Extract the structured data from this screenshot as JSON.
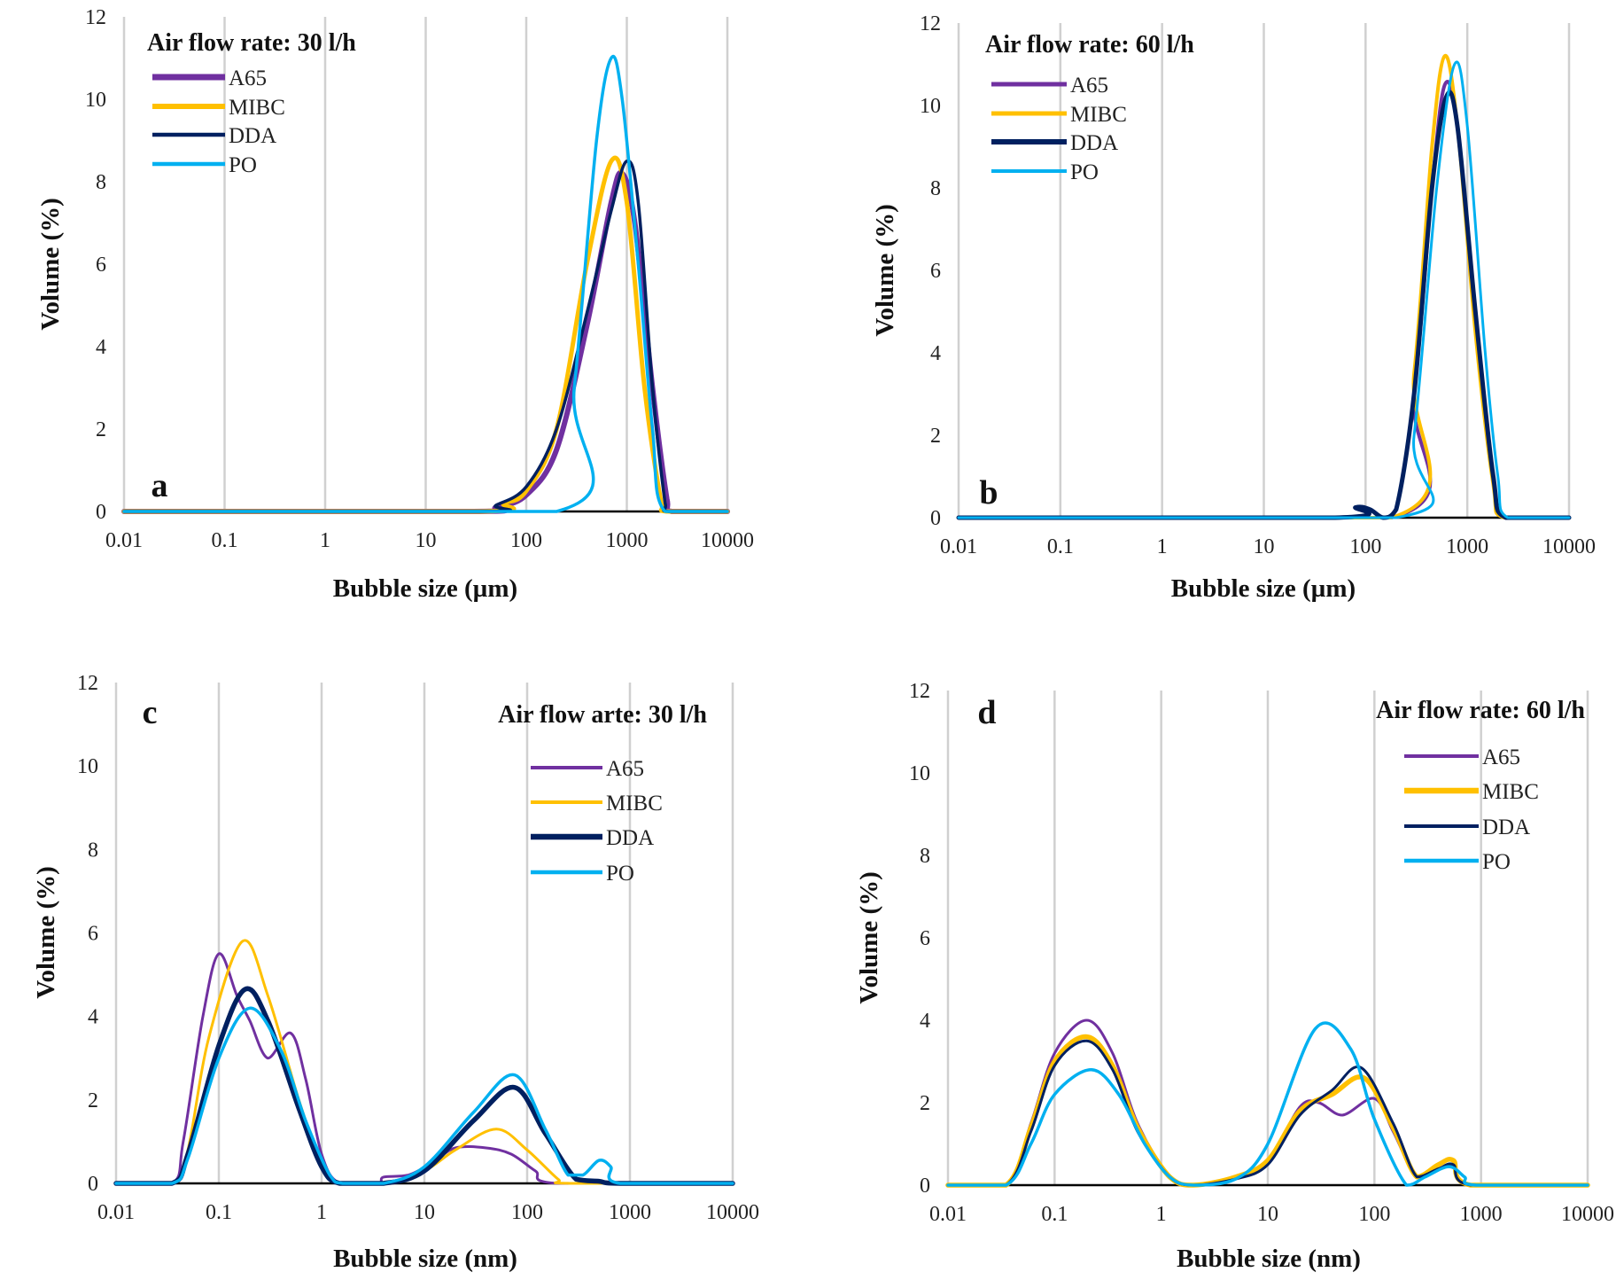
{
  "colors": {
    "A65": "#7030A0",
    "MIBC": "#FFC000",
    "DDA": "#002060",
    "PO": "#00B0F0"
  },
  "chart_data": [
    {
      "type": "line",
      "panel": "a",
      "title": "Air flow rate: 30 l/h",
      "xlabel": "Bubble size (µm)",
      "ylabel": "Volume (%)",
      "xscale": "log",
      "xlim": [
        0.01,
        10000
      ],
      "ylim": [
        0,
        12
      ],
      "xticks": [
        "0.01",
        "0.1",
        "1",
        "10",
        "100",
        "1000",
        "10000"
      ],
      "yticks": [
        "0",
        "2",
        "4",
        "6",
        "8",
        "10",
        "12"
      ],
      "grid": "vertical",
      "legend": "top-left",
      "series": [
        {
          "name": "A65",
          "x": [
            0.01,
            30,
            50,
            100,
            200,
            400,
            700,
            900,
            1200,
            1800,
            2500,
            2800,
            10000
          ],
          "y": [
            0,
            0,
            0.1,
            0.4,
            1.5,
            4.5,
            7.5,
            8.2,
            7,
            3,
            0.3,
            0,
            0
          ]
        },
        {
          "name": "MIBC",
          "x": [
            0.01,
            35,
            60,
            100,
            200,
            400,
            700,
            1000,
            1500,
            2200,
            2500,
            10000
          ],
          "y": [
            0,
            0,
            0.2,
            0.5,
            2,
            6,
            8.5,
            7.5,
            3,
            0.2,
            0,
            0
          ]
        },
        {
          "name": "DDA",
          "x": [
            0.01,
            35,
            50,
            100,
            200,
            400,
            700,
            1000,
            1300,
            1800,
            2400,
            2600,
            10000
          ],
          "y": [
            0,
            0,
            0.15,
            0.6,
            2,
            4.8,
            7.3,
            8.5,
            7.5,
            3,
            0.2,
            0,
            0
          ]
        },
        {
          "name": "PO",
          "x": [
            0.01,
            200,
            300,
            500,
            700,
            900,
            1300,
            1800,
            2400,
            10000
          ],
          "y": [
            0,
            0,
            3,
            9,
            11,
            10,
            6,
            2,
            0,
            0
          ]
        }
      ]
    },
    {
      "type": "line",
      "panel": "b",
      "title": "Air flow rate: 60 l/h",
      "xlabel": "Bubble size (µm)",
      "ylabel": "Volume (%)",
      "xscale": "log",
      "xlim": [
        0.01,
        10000
      ],
      "ylim": [
        0,
        12
      ],
      "xticks": [
        "0.01",
        "0.1",
        "1",
        "10",
        "100",
        "1000",
        "10000"
      ],
      "yticks": [
        "0",
        "2",
        "4",
        "6",
        "8",
        "10",
        "12"
      ],
      "grid": "vertical",
      "legend": "top-left",
      "series": [
        {
          "name": "A65",
          "x": [
            0.01,
            180,
            300,
            450,
            600,
            800,
            1200,
            1800,
            2400,
            10000
          ],
          "y": [
            0,
            0,
            3,
            8,
            10.5,
            9.5,
            5,
            1,
            0,
            0
          ]
        },
        {
          "name": "MIBC",
          "x": [
            0.01,
            180,
            300,
            450,
            600,
            800,
            1200,
            1800,
            2300,
            10000
          ],
          "y": [
            0,
            0,
            3.5,
            9,
            11.2,
            9.5,
            4.5,
            0.8,
            0,
            0
          ]
        },
        {
          "name": "DDA",
          "x": [
            0.01,
            50,
            80,
            110,
            150,
            200,
            300,
            450,
            620,
            800,
            1200,
            1800,
            2400,
            10000
          ],
          "y": [
            0,
            0,
            0.25,
            0.2,
            0,
            0.2,
            3,
            8,
            10.2,
            9.5,
            5,
            1,
            0,
            0
          ]
        },
        {
          "name": "PO",
          "x": [
            0.01,
            200,
            300,
            500,
            750,
            1000,
            1500,
            2000,
            2500,
            10000
          ],
          "y": [
            0,
            0,
            2,
            8,
            11,
            9.5,
            4,
            1,
            0,
            0
          ]
        }
      ]
    },
    {
      "type": "line",
      "panel": "c",
      "title": "Air flow arte: 30 l/h",
      "xlabel": "Bubble size (nm)",
      "ylabel": "Volume (%)",
      "xscale": "log",
      "xlim": [
        0.01,
        10000
      ],
      "ylim": [
        0,
        12
      ],
      "xticks": [
        "0.01",
        "0.1",
        "1",
        "10",
        "100",
        "1000",
        "10000"
      ],
      "yticks": [
        "0",
        "2",
        "4",
        "6",
        "8",
        "10",
        "12"
      ],
      "grid": "vertical",
      "legend": "top-right",
      "series": [
        {
          "name": "A65",
          "x": [
            0.01,
            0.035,
            0.045,
            0.07,
            0.1,
            0.15,
            0.2,
            0.3,
            0.5,
            0.7,
            1.0,
            1.5,
            3.5,
            4,
            7,
            12,
            20,
            40,
            70,
            120,
            200,
            10000
          ],
          "y": [
            0,
            0,
            1,
            4,
            5.5,
            4.5,
            3.9,
            3.0,
            3.6,
            2.5,
            0.7,
            0,
            0,
            0.15,
            0.2,
            0.5,
            0.85,
            0.85,
            0.7,
            0.3,
            0,
            0
          ]
        },
        {
          "name": "MIBC",
          "x": [
            0.01,
            0.035,
            0.05,
            0.08,
            0.17,
            0.3,
            0.6,
            1,
            1.5,
            4,
            10,
            20,
            50,
            100,
            200,
            260,
            10000
          ],
          "y": [
            0,
            0,
            0.8,
            3.5,
            5.8,
            4.5,
            2,
            0.5,
            0,
            0,
            0.3,
            0.8,
            1.3,
            0.8,
            0.1,
            0,
            0
          ]
        },
        {
          "name": "DDA",
          "x": [
            0.01,
            0.035,
            0.05,
            0.1,
            0.18,
            0.3,
            0.6,
            1,
            1.5,
            4,
            10,
            30,
            75,
            150,
            300,
            500,
            800,
            10000
          ],
          "y": [
            0,
            0,
            0.7,
            3.3,
            4.65,
            3.9,
            1.8,
            0.4,
            0,
            0,
            0.3,
            1.5,
            2.3,
            1.2,
            0.1,
            0.05,
            0,
            0
          ]
        },
        {
          "name": "PO",
          "x": [
            0.01,
            0.035,
            0.05,
            0.1,
            0.2,
            0.4,
            0.7,
            1.2,
            1.6,
            4,
            10,
            30,
            75,
            150,
            250,
            350,
            500,
            650,
            800,
            10000
          ],
          "y": [
            0,
            0,
            0.6,
            3,
            4.2,
            3.2,
            1.5,
            0.2,
            0,
            0,
            0.4,
            1.7,
            2.6,
            1.3,
            0.2,
            0.2,
            0.55,
            0.4,
            0,
            0
          ]
        }
      ]
    },
    {
      "type": "line",
      "panel": "d",
      "title": "Air flow rate: 60 l/h",
      "xlabel": "Bubble size (nm)",
      "ylabel": "Volume (%)",
      "xscale": "log",
      "xlim": [
        0.01,
        10000
      ],
      "ylim": [
        0,
        12
      ],
      "xticks": [
        "0.01",
        "0.1",
        "1",
        "10",
        "100",
        "1000",
        "10000"
      ],
      "yticks": [
        "0",
        "2",
        "4",
        "6",
        "8",
        "10",
        "12"
      ],
      "grid": "vertical",
      "legend": "top-right",
      "series": [
        {
          "name": "A65",
          "x": [
            0.01,
            0.035,
            0.06,
            0.1,
            0.2,
            0.35,
            0.6,
            1.2,
            2,
            5,
            10,
            20,
            30,
            50,
            100,
            150,
            250,
            400,
            550,
            800,
            10000
          ],
          "y": [
            0,
            0,
            1.5,
            3.2,
            4,
            3.2,
            1.5,
            0.2,
            0,
            0.15,
            0.6,
            1.9,
            2,
            1.7,
            2.1,
            1.3,
            0.2,
            0.4,
            0.45,
            0,
            0
          ]
        },
        {
          "name": "MIBC",
          "x": [
            0.01,
            0.035,
            0.06,
            0.1,
            0.2,
            0.35,
            0.6,
            1.2,
            2,
            5,
            10,
            20,
            40,
            80,
            150,
            250,
            400,
            550,
            800,
            10000
          ],
          "y": [
            0,
            0,
            1.4,
            3,
            3.6,
            2.9,
            1.4,
            0.2,
            0,
            0.2,
            0.6,
            1.8,
            2.2,
            2.6,
            1.4,
            0.2,
            0.5,
            0.6,
            0,
            0
          ]
        },
        {
          "name": "DDA",
          "x": [
            0.01,
            0.035,
            0.06,
            0.1,
            0.2,
            0.35,
            0.6,
            1.2,
            2,
            5,
            10,
            20,
            40,
            75,
            150,
            250,
            400,
            550,
            800,
            10000
          ],
          "y": [
            0,
            0,
            1.3,
            2.9,
            3.5,
            2.8,
            1.3,
            0.2,
            0,
            0.15,
            0.5,
            1.7,
            2.3,
            2.85,
            1.5,
            0.2,
            0.4,
            0.5,
            0,
            0
          ]
        },
        {
          "name": "PO",
          "x": [
            0.01,
            0.035,
            0.06,
            0.1,
            0.22,
            0.4,
            0.7,
            1.2,
            2,
            5,
            10,
            28,
            60,
            100,
            200,
            300,
            500,
            700,
            900,
            10000
          ],
          "y": [
            0,
            0,
            1,
            2.2,
            2.8,
            2.2,
            1,
            0.2,
            0,
            0.15,
            1,
            3.8,
            3.3,
            1.6,
            0,
            0.2,
            0.45,
            0.2,
            0,
            0
          ]
        }
      ]
    }
  ]
}
